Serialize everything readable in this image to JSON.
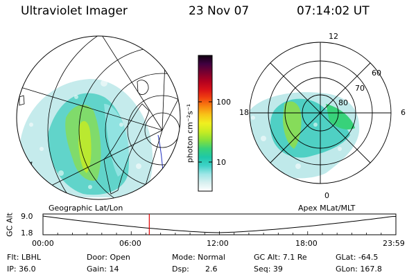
{
  "header": {
    "instrument": "Ultraviolet Imager",
    "date": "23 Nov 07",
    "time": "07:14:02 UT"
  },
  "geo_panel": {
    "label": "Geographic Lat/Lon"
  },
  "polar_panel": {
    "label": "Apex MLat/MLT",
    "mlt_labels": [
      "12",
      "18",
      "6",
      "0"
    ],
    "lat_labels": [
      "60",
      "70",
      "80"
    ]
  },
  "colorbar": {
    "unit_label": "photon cm⁻²s⁻¹",
    "ticks": [
      "100",
      "10"
    ],
    "colors": [
      "#ffffff",
      "#d8f0f0",
      "#9ee6e6",
      "#3fd2c8",
      "#1ec8a8",
      "#38d27a",
      "#86e03a",
      "#c8ec22",
      "#f0f020",
      "#f8c418",
      "#f88410",
      "#f04010",
      "#d81018",
      "#b00020",
      "#780030",
      "#400040",
      "#100010"
    ]
  },
  "timeline": {
    "axis_label": "GC Alt",
    "y_ticks": [
      "9.0",
      "1.8"
    ],
    "x_ticks": [
      "00:00",
      "06:00",
      "12:00",
      "18:00",
      "23:59"
    ],
    "y_range": [
      1.8,
      9.0
    ],
    "current_time_hours": 7.23
  },
  "footer": {
    "row1": [
      "Flt: LBHL",
      "Door: Open",
      "Mode: Normal",
      "GC Alt: 7.1 Re",
      "GLat: -64.5"
    ],
    "row2": [
      "IP: 36.0",
      "Gain: 14",
      "Dsp:",
      "2.6",
      "Seq: 39",
      "GLon: 167.8"
    ]
  }
}
